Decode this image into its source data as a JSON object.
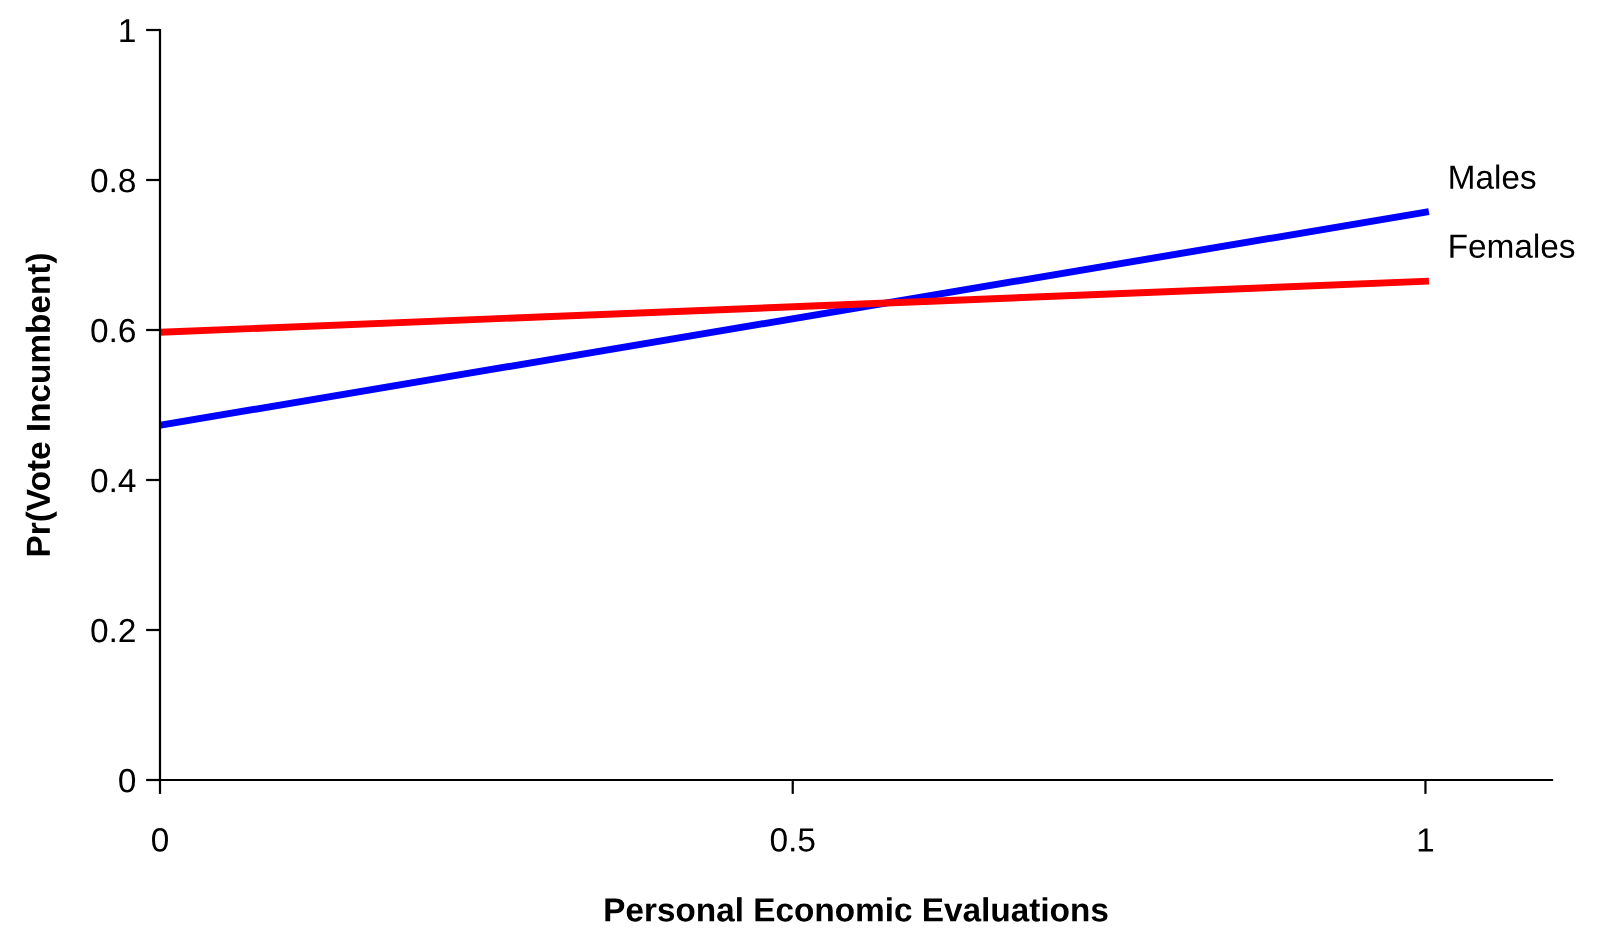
{
  "chart_data": {
    "type": "line",
    "xlabel": "Personal Economic Evaluations",
    "ylabel": "Pr(Vote Incumbent)",
    "series": [
      {
        "name": "Males",
        "color": "#0000ff",
        "values": [
          0.473,
          0.757
        ]
      },
      {
        "name": "Females",
        "color": "#ff0000",
        "values": [
          0.597,
          0.665
        ]
      }
    ],
    "x": [
      0,
      1
    ],
    "xlim": [
      0,
      1.1
    ],
    "xticks": [
      0,
      0.5,
      1
    ],
    "ylim": [
      0,
      1
    ],
    "yticks": [
      0,
      0.2,
      0.4,
      0.6,
      0.8,
      1
    ],
    "grid": false,
    "legend": false,
    "marker": "none",
    "line_style": "solid"
  }
}
